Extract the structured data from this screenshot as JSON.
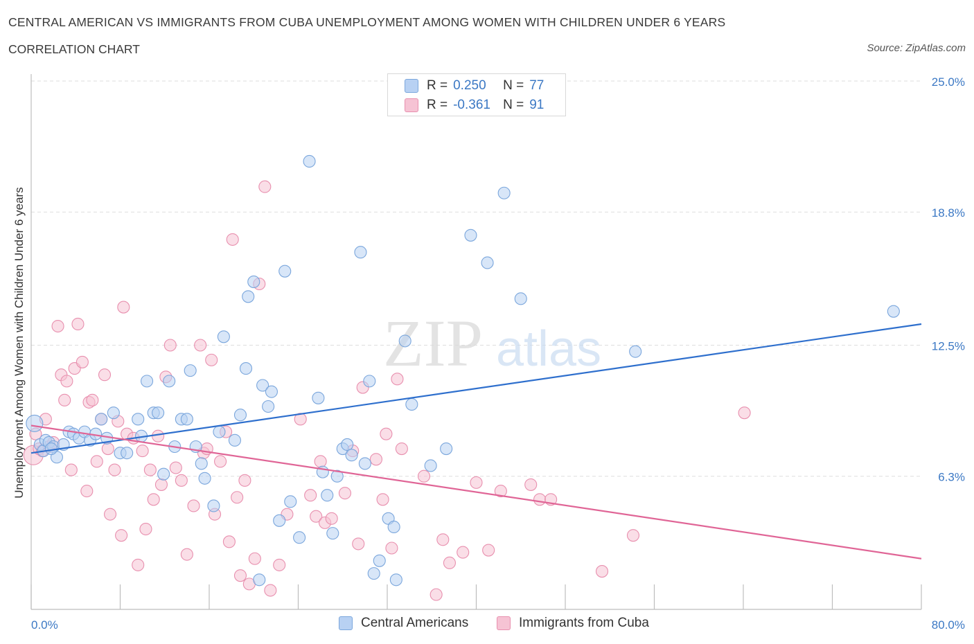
{
  "header": {
    "title": "CENTRAL AMERICAN VS IMMIGRANTS FROM CUBA UNEMPLOYMENT AMONG WOMEN WITH CHILDREN UNDER 6 YEARS",
    "subtitle": "CORRELATION CHART",
    "source": "Source: ZipAtlas.com"
  },
  "watermark": {
    "zip": "ZIP",
    "atlas": "atlas"
  },
  "legend": {
    "rows": [
      {
        "r_label": "R =",
        "r_value": "0.250",
        "n_label": "N =",
        "n_value": "77"
      },
      {
        "r_label": "R =",
        "r_value": "-0.361",
        "n_label": "N =",
        "n_value": "91"
      }
    ]
  },
  "bottom_legend": {
    "items": [
      "Central Americans",
      "Immigrants from Cuba"
    ]
  },
  "colors": {
    "blue_fill": "#b8d1f3",
    "blue_stroke": "#7aa6dc",
    "blue_line": "#2e6fcd",
    "pink_fill": "#f6c3d4",
    "pink_stroke": "#e88fae",
    "pink_line": "#e06596",
    "tick_label": "#3b78c4",
    "grid": "#dedede"
  },
  "chart_data": {
    "type": "scatter",
    "title": "CENTRAL AMERICAN VS IMMIGRANTS FROM CUBA UNEMPLOYMENT AMONG WOMEN WITH CHILDREN UNDER 6 YEARS",
    "subtitle": "CORRELATION CHART",
    "xlabel": "",
    "ylabel": "Unemployment Among Women with Children Under 6 years",
    "xlim": [
      0,
      80
    ],
    "ylim": [
      0,
      25
    ],
    "x_tick_labels": [
      "0.0%",
      "80.0%"
    ],
    "y_ticks": [
      6.3,
      12.5,
      18.8,
      25.0
    ],
    "y_tick_labels": [
      "6.3%",
      "12.5%",
      "18.8%",
      "25.0%"
    ],
    "grid": "horizontal dashed",
    "legend_position": "top-center",
    "series": [
      {
        "name": "Central Americans",
        "R": 0.25,
        "N": 77,
        "trend": [
          [
            0,
            7.4
          ],
          [
            80,
            13.5
          ]
        ],
        "points": [
          [
            0.3,
            8.8
          ],
          [
            0.8,
            7.8
          ],
          [
            1.1,
            7.5
          ],
          [
            1.3,
            8.0
          ],
          [
            1.6,
            7.9
          ],
          [
            2.0,
            7.7
          ],
          [
            2.3,
            7.2
          ],
          [
            2.9,
            7.8
          ],
          [
            3.4,
            8.4
          ],
          [
            3.8,
            8.3
          ],
          [
            4.3,
            8.1
          ],
          [
            4.8,
            8.4
          ],
          [
            5.3,
            8.0
          ],
          [
            5.8,
            8.3
          ],
          [
            6.3,
            9.0
          ],
          [
            6.8,
            8.1
          ],
          [
            7.4,
            9.3
          ],
          [
            8.0,
            7.4
          ],
          [
            8.6,
            7.4
          ],
          [
            9.6,
            9.0
          ],
          [
            9.9,
            8.2
          ],
          [
            10.4,
            10.8
          ],
          [
            11.0,
            9.3
          ],
          [
            11.4,
            9.3
          ],
          [
            11.9,
            6.4
          ],
          [
            12.4,
            10.8
          ],
          [
            12.9,
            7.7
          ],
          [
            13.5,
            9.0
          ],
          [
            14.0,
            9.0
          ],
          [
            14.3,
            11.3
          ],
          [
            14.8,
            7.7
          ],
          [
            15.3,
            6.9
          ],
          [
            15.6,
            6.2
          ],
          [
            16.4,
            4.9
          ],
          [
            16.9,
            8.4
          ],
          [
            17.3,
            12.9
          ],
          [
            18.3,
            8.0
          ],
          [
            18.8,
            9.2
          ],
          [
            19.3,
            11.4
          ],
          [
            19.5,
            14.8
          ],
          [
            20.0,
            15.5
          ],
          [
            20.5,
            1.4
          ],
          [
            20.8,
            10.6
          ],
          [
            21.3,
            9.6
          ],
          [
            21.6,
            10.3
          ],
          [
            22.3,
            4.2
          ],
          [
            22.8,
            16.0
          ],
          [
            23.3,
            5.1
          ],
          [
            24.1,
            3.4
          ],
          [
            25.0,
            21.2
          ],
          [
            25.8,
            10.0
          ],
          [
            26.2,
            6.5
          ],
          [
            26.6,
            5.4
          ],
          [
            27.1,
            3.6
          ],
          [
            27.5,
            6.3
          ],
          [
            28.0,
            7.6
          ],
          [
            28.4,
            7.8
          ],
          [
            28.8,
            7.3
          ],
          [
            29.6,
            16.9
          ],
          [
            30.0,
            6.9
          ],
          [
            30.4,
            10.8
          ],
          [
            30.8,
            1.7
          ],
          [
            31.3,
            2.3
          ],
          [
            32.1,
            4.3
          ],
          [
            32.6,
            3.9
          ],
          [
            32.8,
            1.4
          ],
          [
            33.6,
            12.7
          ],
          [
            34.2,
            9.7
          ],
          [
            35.9,
            6.8
          ],
          [
            37.3,
            7.6
          ],
          [
            39.5,
            17.7
          ],
          [
            41.0,
            16.4
          ],
          [
            42.5,
            19.7
          ],
          [
            44.0,
            14.7
          ],
          [
            54.3,
            12.2
          ],
          [
            77.5,
            14.1
          ],
          [
            1.8,
            7.6
          ]
        ]
      },
      {
        "name": "Immigrants from Cuba",
        "R": -0.361,
        "N": 91,
        "trend": [
          [
            0,
            8.7
          ],
          [
            80,
            2.4
          ]
        ],
        "points": [
          [
            0.2,
            7.3
          ],
          [
            0.4,
            8.3
          ],
          [
            0.7,
            7.6
          ],
          [
            1.0,
            7.5
          ],
          [
            1.3,
            9.0
          ],
          [
            1.6,
            7.7
          ],
          [
            2.0,
            7.9
          ],
          [
            2.4,
            13.4
          ],
          [
            2.7,
            11.1
          ],
          [
            3.0,
            9.9
          ],
          [
            3.2,
            10.8
          ],
          [
            3.6,
            6.6
          ],
          [
            3.9,
            11.4
          ],
          [
            4.2,
            13.5
          ],
          [
            4.6,
            11.7
          ],
          [
            5.0,
            5.6
          ],
          [
            5.2,
            9.8
          ],
          [
            5.5,
            9.9
          ],
          [
            5.9,
            7.0
          ],
          [
            6.3,
            9.0
          ],
          [
            6.6,
            11.1
          ],
          [
            6.9,
            7.6
          ],
          [
            7.1,
            4.5
          ],
          [
            7.5,
            6.6
          ],
          [
            7.8,
            8.9
          ],
          [
            8.1,
            3.5
          ],
          [
            8.3,
            14.3
          ],
          [
            8.6,
            8.3
          ],
          [
            9.2,
            8.1
          ],
          [
            9.6,
            2.1
          ],
          [
            10.0,
            7.5
          ],
          [
            10.3,
            3.8
          ],
          [
            10.7,
            6.6
          ],
          [
            11.0,
            5.2
          ],
          [
            11.4,
            8.2
          ],
          [
            11.7,
            5.9
          ],
          [
            12.1,
            11.0
          ],
          [
            12.5,
            12.5
          ],
          [
            13.0,
            6.7
          ],
          [
            13.5,
            6.1
          ],
          [
            14.0,
            2.6
          ],
          [
            14.6,
            4.9
          ],
          [
            15.2,
            12.5
          ],
          [
            15.5,
            7.4
          ],
          [
            15.8,
            7.6
          ],
          [
            16.2,
            11.8
          ],
          [
            16.5,
            4.5
          ],
          [
            17.0,
            7.0
          ],
          [
            17.5,
            8.4
          ],
          [
            17.8,
            3.2
          ],
          [
            18.1,
            17.5
          ],
          [
            18.5,
            5.3
          ],
          [
            18.8,
            1.6
          ],
          [
            19.2,
            6.1
          ],
          [
            19.6,
            1.2
          ],
          [
            20.1,
            2.4
          ],
          [
            20.5,
            15.4
          ],
          [
            21.0,
            20.0
          ],
          [
            21.5,
            0.9
          ],
          [
            22.3,
            2.1
          ],
          [
            23.0,
            4.5
          ],
          [
            24.2,
            9.0
          ],
          [
            25.1,
            5.4
          ],
          [
            25.6,
            4.4
          ],
          [
            26.0,
            7.0
          ],
          [
            26.4,
            4.1
          ],
          [
            27.0,
            4.3
          ],
          [
            28.2,
            5.5
          ],
          [
            28.9,
            7.5
          ],
          [
            29.4,
            3.1
          ],
          [
            29.8,
            10.5
          ],
          [
            31.0,
            7.1
          ],
          [
            31.6,
            5.2
          ],
          [
            31.9,
            8.3
          ],
          [
            32.4,
            2.9
          ],
          [
            32.9,
            10.9
          ],
          [
            33.3,
            7.6
          ],
          [
            35.3,
            6.3
          ],
          [
            36.4,
            0.7
          ],
          [
            37.0,
            3.3
          ],
          [
            37.6,
            2.2
          ],
          [
            38.8,
            2.7
          ],
          [
            40.0,
            6.0
          ],
          [
            41.1,
            2.8
          ],
          [
            42.2,
            5.6
          ],
          [
            44.9,
            5.9
          ],
          [
            45.7,
            5.2
          ],
          [
            46.7,
            5.2
          ],
          [
            51.3,
            1.8
          ],
          [
            54.1,
            3.5
          ],
          [
            64.1,
            9.3
          ]
        ]
      }
    ]
  }
}
